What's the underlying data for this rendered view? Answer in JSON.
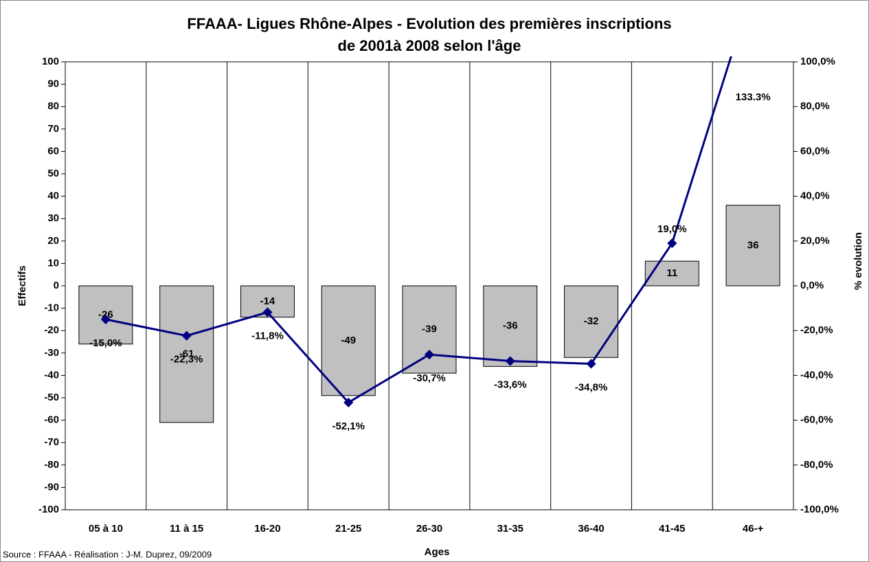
{
  "chart_data": {
    "type": "bar_line",
    "title": [
      "FFAAA- Ligues Rhône-Alpes - Evolution des premières inscriptions",
      "de 2001à 2008 selon l'âge"
    ],
    "xlabel": "Ages",
    "ylabel": "Effectifs",
    "y2label": "% evolution",
    "source": "Source : FFAAA - Réalisation : J-M. Duprez, 09/2009",
    "categories": [
      "05 à 10",
      "11 à 15",
      "16-20",
      "21-25",
      "26-30",
      "31-35",
      "36-40",
      "41-45",
      "46-+"
    ],
    "series": [
      {
        "name": "Effectifs",
        "type": "bar",
        "color": "#c0c0c0",
        "values": [
          -26,
          -61,
          -14,
          -49,
          -39,
          -36,
          -32,
          11,
          36
        ]
      },
      {
        "name": "% evolution",
        "type": "line",
        "axis": "y2",
        "color": "#000080",
        "values": [
          -15.0,
          -22.3,
          -11.8,
          -52.1,
          -30.7,
          -33.6,
          -34.8,
          19.0,
          133.3
        ],
        "value_labels": [
          "-15,0%",
          "-22,3%",
          "-11,8%",
          "-52,1%",
          "-30,7%",
          "-33,6%",
          "-34,8%",
          "19,0%",
          "133.3%"
        ]
      }
    ],
    "ylim": [
      -100,
      100
    ],
    "yticks": [
      -100,
      -90,
      -80,
      -70,
      -60,
      -50,
      -40,
      -30,
      -20,
      -10,
      0,
      10,
      20,
      30,
      40,
      50,
      60,
      70,
      80,
      90,
      100
    ],
    "y2lim": [
      -100,
      100
    ],
    "y2ticks": [
      {
        "value": -100,
        "label": "-100,0%"
      },
      {
        "value": -80,
        "label": "-80,0%"
      },
      {
        "value": -60,
        "label": "-60,0%"
      },
      {
        "value": -40,
        "label": "-40,0%"
      },
      {
        "value": -20,
        "label": "-20,0%"
      },
      {
        "value": 0,
        "label": "0,0%"
      },
      {
        "value": 20,
        "label": "20,0%"
      },
      {
        "value": 40,
        "label": "40,0%"
      },
      {
        "value": 60,
        "label": "60,0%"
      },
      {
        "value": 80,
        "label": "80,0%"
      },
      {
        "value": 100,
        "label": "100,0%"
      }
    ]
  }
}
